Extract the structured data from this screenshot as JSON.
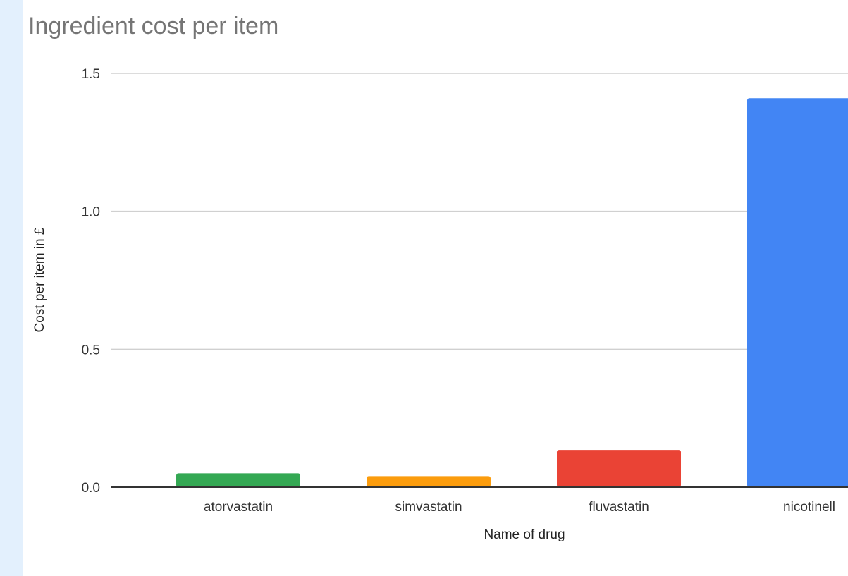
{
  "chart_data": {
    "type": "bar",
    "title": "Ingredient cost per item",
    "xlabel": "Name of drug",
    "ylabel": "Cost per item in £",
    "ylim": [
      0,
      1.5
    ],
    "yticks": [
      "0.0",
      "0.5",
      "1.0",
      "1.5"
    ],
    "grid": true,
    "categories": [
      "atorvastatin",
      "simvastatin",
      "fluvastatin",
      "nicotinell"
    ],
    "values": [
      0.05,
      0.04,
      0.135,
      1.41
    ],
    "colors": [
      "#34a853",
      "#fb9c0d",
      "#ea4335",
      "#4285f4"
    ]
  }
}
